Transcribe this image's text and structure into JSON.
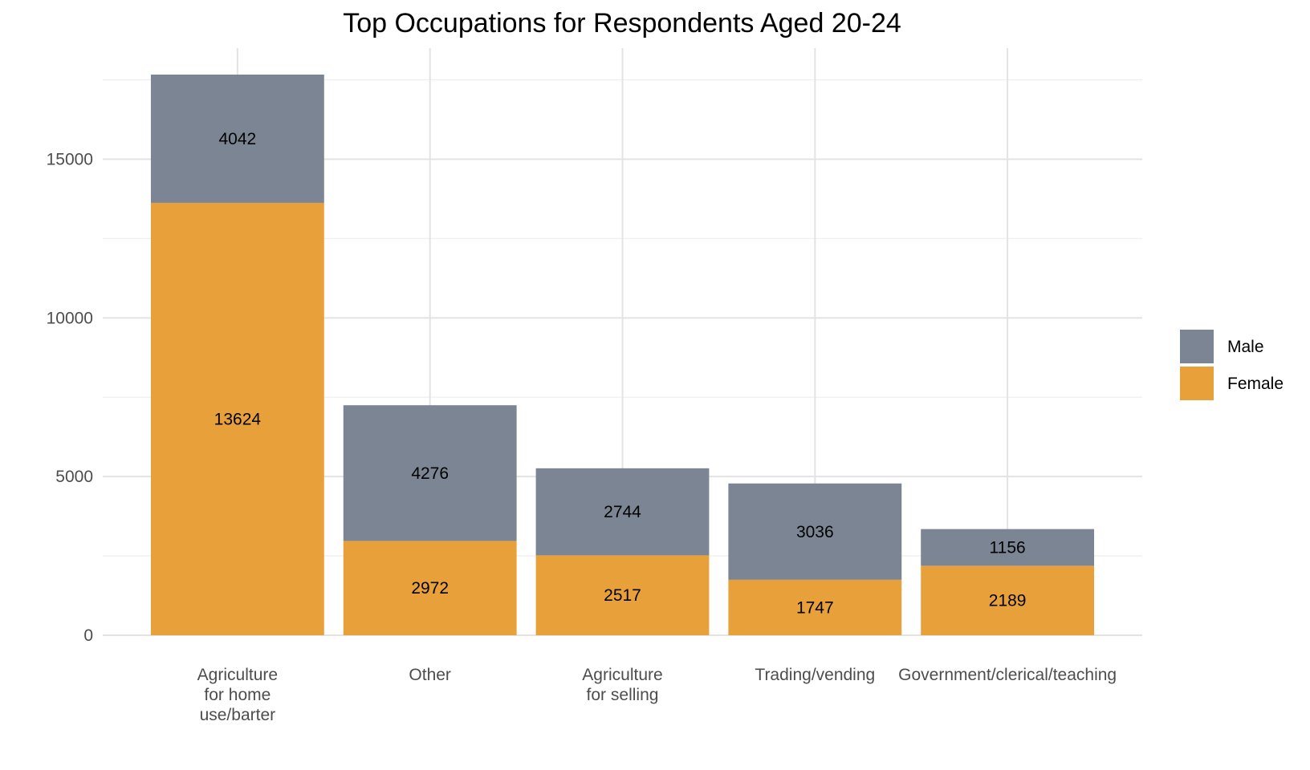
{
  "chart_data": {
    "type": "bar",
    "stacked": true,
    "title": "Top Occupations for Respondents Aged 20-24",
    "xlabel": "",
    "ylabel": "",
    "ylim": [
      0,
      18500
    ],
    "yticks": [
      0,
      5000,
      10000,
      15000
    ],
    "categories": [
      [
        "Agriculture",
        "for home",
        "use/barter"
      ],
      [
        "Other"
      ],
      [
        "Agriculture",
        "for selling"
      ],
      [
        "Trading/vending"
      ],
      [
        "Government/clerical/teaching"
      ]
    ],
    "series": [
      {
        "name": "Female",
        "color": "#e8a13a",
        "values": [
          13624,
          2972,
          2517,
          1747,
          2189
        ]
      },
      {
        "name": "Male",
        "color": "#7c8593",
        "values": [
          4042,
          4276,
          2744,
          3036,
          1156
        ]
      }
    ],
    "legend": {
      "position": "right",
      "order": [
        "Male",
        "Female"
      ]
    },
    "grid": true
  }
}
